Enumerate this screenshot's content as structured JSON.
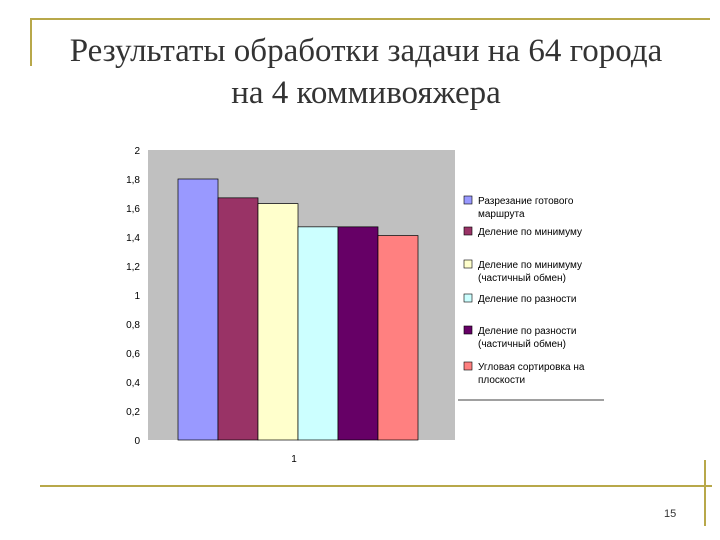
{
  "slide": {
    "title_line1": "Результаты обработки задачи на 64 города",
    "title_line2": "на 4 коммивояжера",
    "page_number": "15"
  },
  "chart_data": {
    "type": "bar",
    "categories": [
      "1"
    ],
    "series": [
      {
        "name": "Разрезание готового маршрута",
        "values": [
          1.8
        ],
        "color": "#9999ff"
      },
      {
        "name": "Деление по минимуму",
        "values": [
          1.67
        ],
        "color": "#993366"
      },
      {
        "name": "Деление по минимуму (частичный обмен)",
        "values": [
          1.63
        ],
        "color": "#ffffcc"
      },
      {
        "name": "Деление по разности",
        "values": [
          1.47
        ],
        "color": "#ccffff"
      },
      {
        "name": "Деление по разности (частичный обмен)",
        "values": [
          1.47
        ],
        "color": "#660066"
      },
      {
        "name": "Угловая сортировка на плоскости",
        "values": [
          1.41
        ],
        "color": "#ff8080"
      }
    ],
    "y_ticks": [
      "0",
      "0,2",
      "0,4",
      "0,6",
      "0,8",
      "1",
      "1,2",
      "1,4",
      "1,6",
      "1,8",
      "2"
    ],
    "ylim": [
      0,
      2
    ],
    "plot_background": "#c0c0c0",
    "legend_position": "right",
    "grid": false
  }
}
